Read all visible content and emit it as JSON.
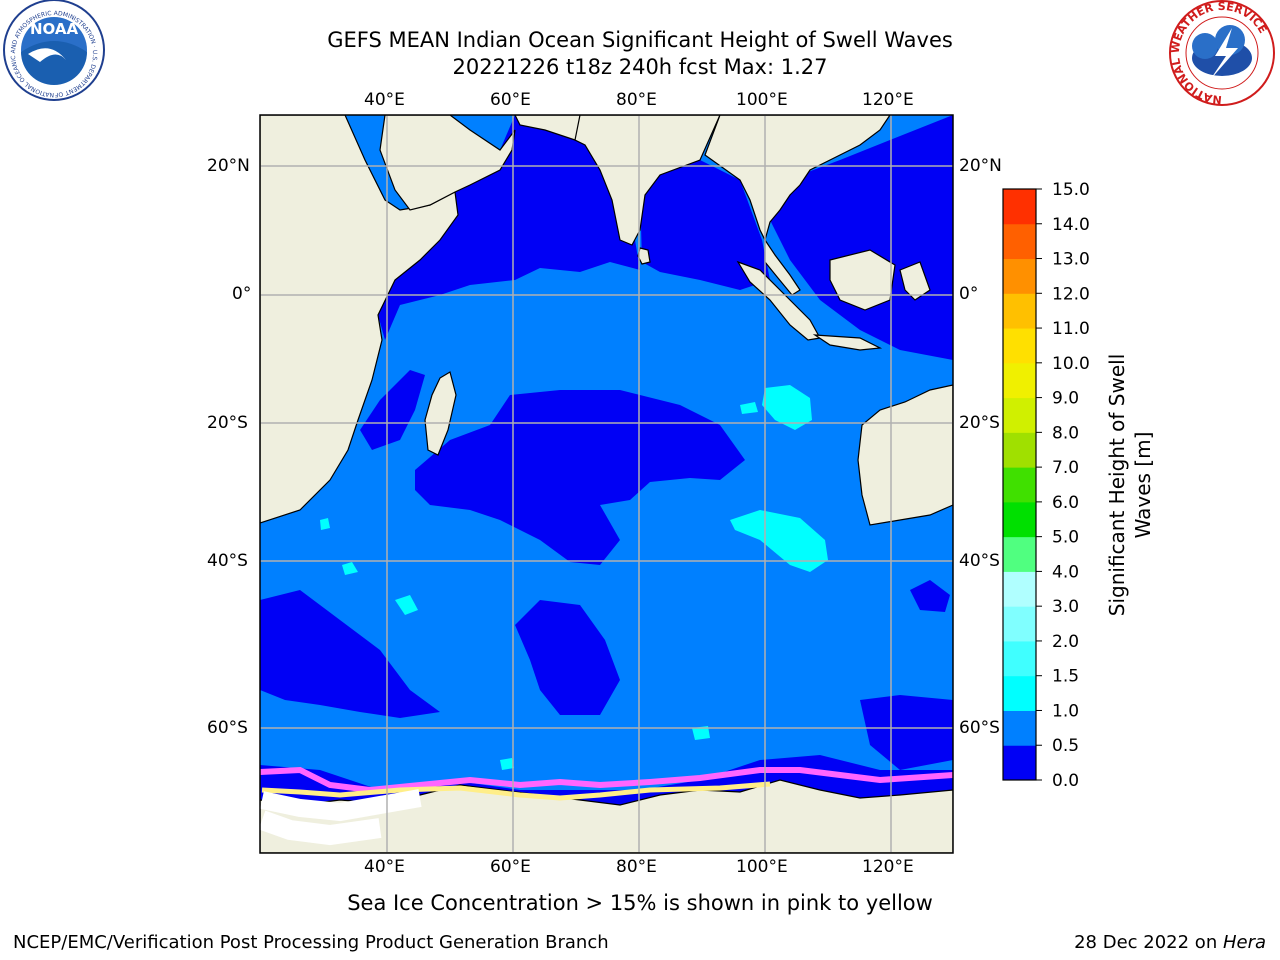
{
  "header": {
    "title_line1": "GEFS MEAN Indian Ocean Significant Height of Swell Waves",
    "title_line2": "20221226 t18z 240h fcst   Max: 1.27"
  },
  "logos": {
    "noaa_text": "NOAA",
    "noaa_ring": "NATIONAL OCEANIC AND ATMOSPHERIC ADMINISTRATION · U.S. DEPARTMENT OF COMMERCE",
    "nws_ring": "NATIONAL WEATHER SERVICE"
  },
  "map": {
    "lon_ticks": [
      "40°E",
      "60°E",
      "80°E",
      "100°E",
      "120°E"
    ],
    "lat_ticks": [
      "20°N",
      "0°",
      "20°S",
      "40°S",
      "60°S"
    ],
    "colors": {
      "land": "#efefde",
      "swell_0_05": "#0000f5",
      "swell_05_1": "#0080ff",
      "swell_1_15": "#00ffff",
      "swell_15_2": "#80ffff",
      "ice_pink": "#ff66ff",
      "ice_yellow": "#ffee88",
      "ice_white": "#ffffff",
      "grid": "#b0b0b0"
    }
  },
  "colorbar": {
    "label": "Significant Height of Swell Waves [m]",
    "ticks": [
      "0.0",
      "0.5",
      "1.0",
      "1.5",
      "2.0",
      "3.0",
      "4.0",
      "5.0",
      "6.0",
      "7.0",
      "8.0",
      "9.0",
      "10.0",
      "11.0",
      "12.0",
      "13.0",
      "14.0",
      "15.0"
    ],
    "colors": [
      "#0000f5",
      "#0080ff",
      "#00ffff",
      "#40ffff",
      "#80ffff",
      "#b0ffff",
      "#50ff80",
      "#00e000",
      "#40e000",
      "#a0e000",
      "#d0f000",
      "#f0f000",
      "#ffe000",
      "#ffc000",
      "#ff9000",
      "#ff6000",
      "#ff3000",
      "#ff0000"
    ]
  },
  "note": "Sea Ice Concentration > 15% is shown in pink to yellow",
  "footer": {
    "left": "NCEP/EMC/Verification Post Processing Product Generation Branch",
    "right_date": "28 Dec 2022 on ",
    "right_host": "Hera"
  }
}
